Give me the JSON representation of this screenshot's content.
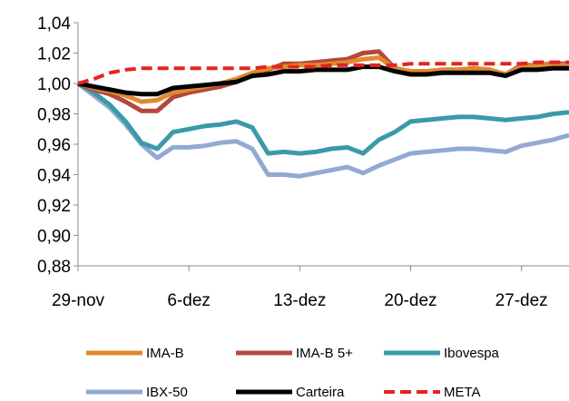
{
  "chart_data": {
    "type": "line",
    "title": "",
    "xlabel": "",
    "ylabel": "",
    "ylim": [
      0.88,
      1.04
    ],
    "yticks": [
      "1,04",
      "1,02",
      "1,00",
      "0,98",
      "0,96",
      "0,94",
      "0,92",
      "0,90",
      "0,88"
    ],
    "xticks": [
      "29-nov",
      "6-dez",
      "13-dez",
      "20-dez",
      "27-dez"
    ],
    "xtick_days": [
      0,
      7,
      14,
      21,
      28
    ],
    "xlim_days": [
      0,
      31
    ],
    "grid": false,
    "legend_position": "bottom",
    "series": [
      {
        "name": "IMA-B",
        "color": "#e08a2e",
        "dash": false,
        "x": [
          0,
          1,
          2,
          3,
          4,
          5,
          6,
          7,
          8,
          9,
          10,
          11,
          12,
          13,
          14,
          15,
          16,
          17,
          18,
          19,
          20,
          21,
          22,
          23,
          24,
          25,
          26,
          27,
          28,
          29,
          30,
          31
        ],
        "y": [
          1.0,
          0.997,
          0.995,
          0.992,
          0.988,
          0.989,
          0.994,
          0.996,
          0.998,
          1.0,
          1.003,
          1.007,
          1.01,
          1.011,
          1.012,
          1.012,
          1.013,
          1.014,
          1.016,
          1.017,
          1.01,
          1.008,
          1.008,
          1.009,
          1.009,
          1.01,
          1.009,
          1.006,
          1.011,
          1.012,
          1.012,
          1.012
        ]
      },
      {
        "name": "IMA-B 5+",
        "color": "#b5473d",
        "dash": false,
        "x": [
          0,
          1,
          2,
          3,
          4,
          5,
          6,
          7,
          8,
          9,
          10,
          11,
          12,
          13,
          14,
          15,
          16,
          17,
          18,
          19,
          20,
          21,
          22,
          23,
          24,
          25,
          26,
          27,
          28,
          29,
          30,
          31
        ],
        "y": [
          1.0,
          0.996,
          0.993,
          0.988,
          0.982,
          0.982,
          0.991,
          0.994,
          0.996,
          0.998,
          1.001,
          1.006,
          1.009,
          1.013,
          1.013,
          1.014,
          1.015,
          1.016,
          1.02,
          1.021,
          1.01,
          1.008,
          1.008,
          1.009,
          1.009,
          1.01,
          1.009,
          1.006,
          1.012,
          1.012,
          1.013,
          1.013
        ]
      },
      {
        "name": "Ibovespa",
        "color": "#3a9aaa",
        "dash": false,
        "x": [
          0,
          1,
          2,
          3,
          4,
          5,
          6,
          7,
          8,
          9,
          10,
          11,
          12,
          13,
          14,
          15,
          16,
          17,
          18,
          19,
          20,
          21,
          22,
          23,
          24,
          25,
          26,
          27,
          28,
          29,
          30,
          31
        ],
        "y": [
          1.0,
          0.994,
          0.986,
          0.975,
          0.961,
          0.957,
          0.968,
          0.97,
          0.972,
          0.973,
          0.975,
          0.971,
          0.954,
          0.955,
          0.954,
          0.955,
          0.957,
          0.958,
          0.954,
          0.963,
          0.968,
          0.975,
          0.976,
          0.977,
          0.978,
          0.978,
          0.977,
          0.976,
          0.977,
          0.978,
          0.98,
          0.981
        ]
      },
      {
        "name": "IBX-50",
        "color": "#93a9d2",
        "dash": false,
        "x": [
          0,
          1,
          2,
          3,
          4,
          5,
          6,
          7,
          8,
          9,
          10,
          11,
          12,
          13,
          14,
          15,
          16,
          17,
          18,
          19,
          20,
          21,
          22,
          23,
          24,
          25,
          26,
          27,
          28,
          29,
          30,
          31
        ],
        "y": [
          1.0,
          0.992,
          0.984,
          0.973,
          0.96,
          0.951,
          0.958,
          0.958,
          0.959,
          0.961,
          0.962,
          0.957,
          0.94,
          0.94,
          0.939,
          0.941,
          0.943,
          0.945,
          0.941,
          0.946,
          0.95,
          0.954,
          0.955,
          0.956,
          0.957,
          0.957,
          0.956,
          0.955,
          0.959,
          0.961,
          0.963,
          0.966
        ]
      },
      {
        "name": "Carteira",
        "color": "#000000",
        "dash": false,
        "x": [
          0,
          1,
          2,
          3,
          4,
          5,
          6,
          7,
          8,
          9,
          10,
          11,
          12,
          13,
          14,
          15,
          16,
          17,
          18,
          19,
          20,
          21,
          22,
          23,
          24,
          25,
          26,
          27,
          28,
          29,
          30,
          31
        ],
        "y": [
          1.0,
          0.998,
          0.996,
          0.994,
          0.993,
          0.993,
          0.997,
          0.998,
          0.999,
          1.0,
          1.001,
          1.005,
          1.006,
          1.008,
          1.008,
          1.009,
          1.009,
          1.009,
          1.011,
          1.011,
          1.008,
          1.006,
          1.006,
          1.007,
          1.007,
          1.007,
          1.007,
          1.005,
          1.009,
          1.009,
          1.01,
          1.01
        ]
      },
      {
        "name": "META",
        "color": "#e3241f",
        "dash": true,
        "x": [
          0,
          1,
          2,
          3,
          4,
          5,
          6,
          7,
          8,
          9,
          10,
          11,
          12,
          13,
          14,
          15,
          16,
          17,
          18,
          19,
          20,
          21,
          22,
          23,
          24,
          25,
          26,
          27,
          28,
          29,
          30,
          31
        ],
        "y": [
          1.0,
          1.003,
          1.007,
          1.009,
          1.01,
          1.01,
          1.01,
          1.01,
          1.01,
          1.01,
          1.01,
          1.01,
          1.011,
          1.011,
          1.011,
          1.011,
          1.012,
          1.012,
          1.012,
          1.012,
          1.012,
          1.013,
          1.013,
          1.013,
          1.013,
          1.013,
          1.013,
          1.013,
          1.013,
          1.014,
          1.014,
          1.014
        ]
      }
    ]
  }
}
